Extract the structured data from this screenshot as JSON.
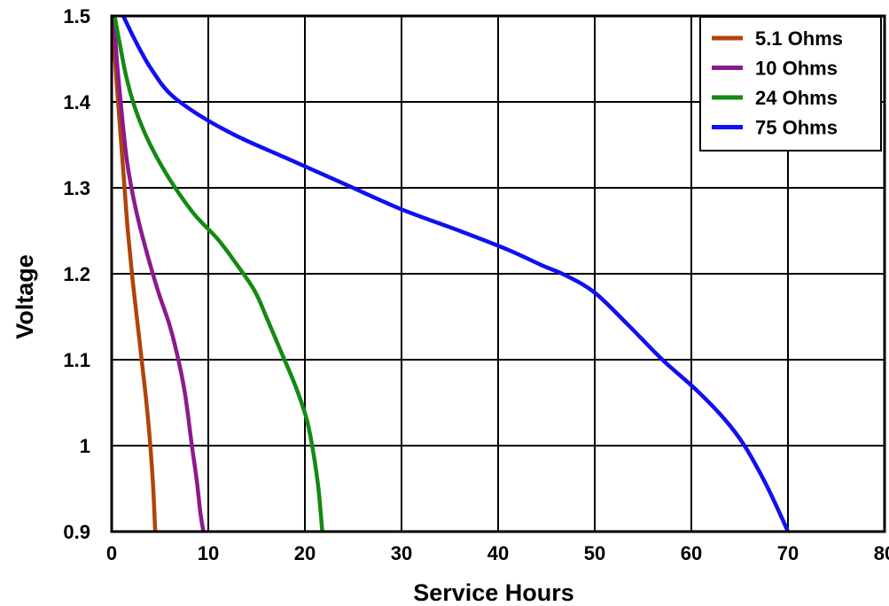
{
  "chart_data": {
    "type": "line",
    "title": "",
    "xlabel": "Service Hours",
    "ylabel": "Voltage",
    "xlim": [
      0,
      80
    ],
    "ylim": [
      0.9,
      1.5
    ],
    "x_ticks": [
      {
        "value": 0,
        "label": "0"
      },
      {
        "value": 10,
        "label": "10"
      },
      {
        "value": 20,
        "label": "20"
      },
      {
        "value": 30,
        "label": "30"
      },
      {
        "value": 40,
        "label": "40"
      },
      {
        "value": 50,
        "label": "50"
      },
      {
        "value": 60,
        "label": "60"
      },
      {
        "value": 70,
        "label": "70"
      },
      {
        "value": 80,
        "label": "80"
      }
    ],
    "y_ticks": [
      {
        "value": 0.9,
        "label": "0.9"
      },
      {
        "value": 1.0,
        "label": "1"
      },
      {
        "value": 1.1,
        "label": "1.1"
      },
      {
        "value": 1.2,
        "label": "1.2"
      },
      {
        "value": 1.3,
        "label": "1.3"
      },
      {
        "value": 1.4,
        "label": "1.4"
      },
      {
        "value": 1.5,
        "label": "1.5"
      }
    ],
    "grid": true,
    "legend_position": "top-right",
    "series": [
      {
        "name": "5.1 Ohms",
        "color": "#b0440c",
        "x": [
          0.1,
          0.4,
          0.8,
          1.2,
          1.6,
          2.1,
          2.6,
          3.1,
          3.6,
          4.0,
          4.3,
          4.5
        ],
        "y": [
          1.5,
          1.44,
          1.38,
          1.32,
          1.26,
          1.2,
          1.15,
          1.1,
          1.05,
          1.0,
          0.95,
          0.9
        ]
      },
      {
        "name": "10 Ohms",
        "color": "#8b1a8f",
        "x": [
          0.2,
          0.6,
          1.1,
          1.6,
          2.4,
          3.5,
          4.8,
          6.0,
          6.9,
          7.6,
          8.3,
          8.8,
          9.2,
          9.5
        ],
        "y": [
          1.5,
          1.44,
          1.38,
          1.33,
          1.28,
          1.23,
          1.18,
          1.14,
          1.1,
          1.06,
          1.0,
          0.96,
          0.92,
          0.9
        ]
      },
      {
        "name": "24 Ohms",
        "color": "#138a13",
        "x": [
          0.3,
          0.8,
          1.5,
          2.5,
          4.0,
          6.0,
          8.5,
          11.0,
          13.0,
          14.8,
          16.0,
          17.5,
          19.0,
          20.2,
          20.9,
          21.4,
          21.8
        ],
        "y": [
          1.5,
          1.47,
          1.43,
          1.39,
          1.35,
          1.31,
          1.27,
          1.24,
          1.21,
          1.18,
          1.15,
          1.11,
          1.07,
          1.03,
          0.99,
          0.95,
          0.9
        ]
      },
      {
        "name": "75 Ohms",
        "color": "#1010f0",
        "x": [
          1.2,
          2.5,
          4.0,
          6.0,
          9.0,
          13.0,
          18.0,
          24.0,
          30.0,
          36.0,
          41.0,
          44.5,
          47.0,
          50.0,
          53.5,
          57.0,
          60.5,
          63.5,
          65.5,
          67.5,
          69.0,
          70.0
        ],
        "y": [
          1.5,
          1.47,
          1.44,
          1.41,
          1.385,
          1.36,
          1.335,
          1.305,
          1.275,
          1.25,
          1.228,
          1.21,
          1.198,
          1.178,
          1.14,
          1.1,
          1.065,
          1.03,
          1.0,
          0.96,
          0.925,
          0.9
        ]
      }
    ]
  }
}
